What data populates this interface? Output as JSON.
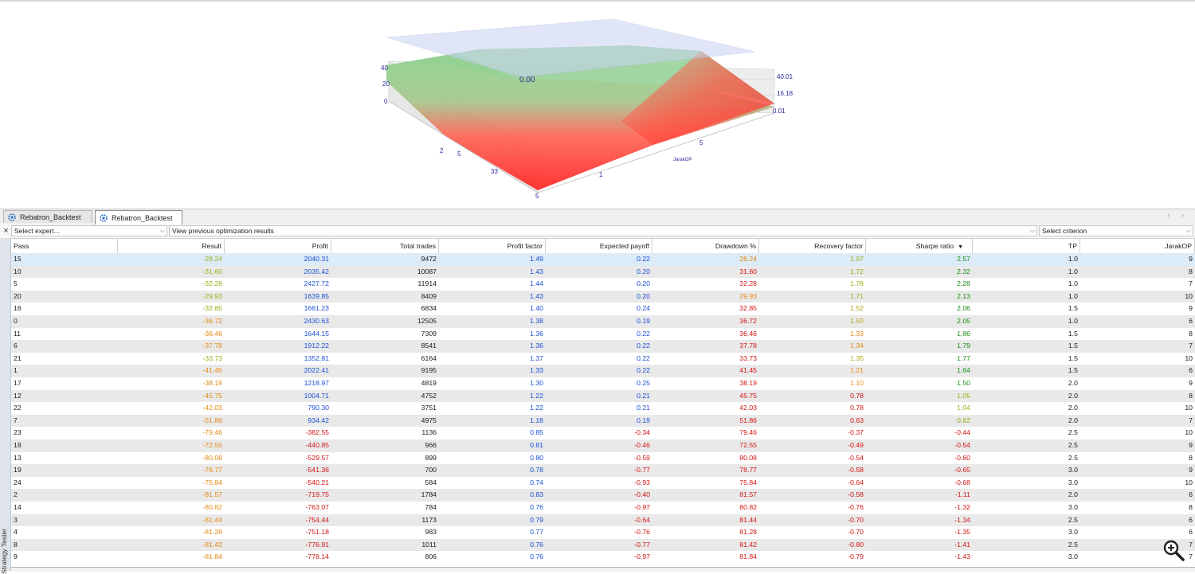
{
  "chart3d": {
    "labels": {
      "center": "0.00",
      "left_ticks": [
        "40",
        "20",
        "0"
      ],
      "right_ticks": [
        "40.01",
        "16.18",
        "0.01"
      ],
      "front_ticks": [
        "2",
        "5",
        "33",
        "5",
        "1",
        "5"
      ],
      "axis_name": "JarakOP"
    },
    "colors": {
      "high": "#8fd68f",
      "low": "#ff3030",
      "plane": "#c8d2f2"
    }
  },
  "tabs": [
    {
      "label": "Rebatron_Backtest",
      "icon": "gear-icon",
      "active": false
    },
    {
      "label": "Rebatron_Backtest",
      "icon": "gear-icon",
      "active": true
    }
  ],
  "toolbar": {
    "close": "×",
    "expert_placeholder": "Select expert...",
    "results_mode": "View previous optimization results",
    "criterion_placeholder": "Select criterion"
  },
  "side_panel_label": "Strategy Tester",
  "table": {
    "headers": [
      "Pass",
      "Result",
      "Profit",
      "Total trades",
      "Profit factor",
      "Expected payoff",
      "Drawdown %",
      "Recovery factor",
      "Sharpe ratio",
      "TP",
      "JarakOP"
    ],
    "sort_indicator": "▼",
    "rows": [
      [
        "15",
        "-28.24",
        "2040.31",
        "9472",
        "1.49",
        "0.22",
        "28.24",
        "1.97",
        "2.57",
        "1.0",
        "9"
      ],
      [
        "10",
        "-31.60",
        "2035.42",
        "10087",
        "1.43",
        "0.20",
        "31.60",
        "1.72",
        "2.32",
        "1.0",
        "8"
      ],
      [
        "5",
        "-32.28",
        "2427.72",
        "11914",
        "1.44",
        "0.20",
        "32.28",
        "1.78",
        "2.28",
        "1.0",
        "7"
      ],
      [
        "20",
        "-29.93",
        "1639.85",
        "8409",
        "1.43",
        "0.20",
        "29.93",
        "1.71",
        "2.13",
        "1.0",
        "10"
      ],
      [
        "16",
        "-32.85",
        "1661.23",
        "6834",
        "1.40",
        "0.24",
        "32.85",
        "1.52",
        "2.06",
        "1.5",
        "9"
      ],
      [
        "0",
        "-36.72",
        "2430.63",
        "12505",
        "1.38",
        "0.19",
        "36.72",
        "1.50",
        "2.05",
        "1.0",
        "6"
      ],
      [
        "11",
        "-36.46",
        "1644.15",
        "7309",
        "1.36",
        "0.22",
        "36.46",
        "1.33",
        "1.86",
        "1.5",
        "8"
      ],
      [
        "6",
        "-37.78",
        "1912.22",
        "8541",
        "1.36",
        "0.22",
        "37.78",
        "1.34",
        "1.79",
        "1.5",
        "7"
      ],
      [
        "21",
        "-33.73",
        "1352.81",
        "6164",
        "1.37",
        "0.22",
        "33.73",
        "1.35",
        "1.77",
        "1.5",
        "10"
      ],
      [
        "1",
        "-41.45",
        "2022.41",
        "9195",
        "1.33",
        "0.22",
        "41.45",
        "1.21",
        "1.64",
        "1.5",
        "6"
      ],
      [
        "17",
        "-38.19",
        "1218.97",
        "4819",
        "1.30",
        "0.25",
        "38.19",
        "1.10",
        "1.50",
        "2.0",
        "9"
      ],
      [
        "12",
        "-45.75",
        "1004.71",
        "4752",
        "1.22",
        "0.21",
        "45.75",
        "0.78",
        "1.05",
        "2.0",
        "8"
      ],
      [
        "22",
        "-42.03",
        "790.30",
        "3751",
        "1.22",
        "0.21",
        "42.03",
        "0.78",
        "1.04",
        "2.0",
        "10"
      ],
      [
        "7",
        "-51.86",
        "934.42",
        "4975",
        "1.18",
        "0.19",
        "51.86",
        "0.63",
        "0.82",
        "2.0",
        "7"
      ],
      [
        "23",
        "-79.46",
        "-382.55",
        "1136",
        "0.85",
        "-0.34",
        "79.46",
        "-0.37",
        "-0.44",
        "2.5",
        "10"
      ],
      [
        "18",
        "-72.55",
        "-440.85",
        "966",
        "0.81",
        "-0.46",
        "72.55",
        "-0.49",
        "-0.54",
        "2.5",
        "9"
      ],
      [
        "13",
        "-80.08",
        "-529.57",
        "899",
        "0.80",
        "-0.59",
        "80.08",
        "-0.54",
        "-0.60",
        "2.5",
        "8"
      ],
      [
        "19",
        "-78.77",
        "-541.36",
        "700",
        "0.78",
        "-0.77",
        "78.77",
        "-0.58",
        "-0.65",
        "3.0",
        "9"
      ],
      [
        "24",
        "-75.84",
        "-540.21",
        "584",
        "0.74",
        "-0.93",
        "75.84",
        "-0.64",
        "-0.68",
        "3.0",
        "10"
      ],
      [
        "2",
        "-81.57",
        "-719.75",
        "1784",
        "0.83",
        "-0.40",
        "81.57",
        "-0.58",
        "-1.11",
        "2.0",
        "6"
      ],
      [
        "14",
        "-80.82",
        "-763.07",
        "784",
        "0.76",
        "-0.97",
        "80.82",
        "-0.76",
        "-1.32",
        "3.0",
        "8"
      ],
      [
        "3",
        "-81.44",
        "-754.44",
        "1173",
        "0.79",
        "-0.64",
        "81.44",
        "-0.70",
        "-1.34",
        "2.5",
        "6"
      ],
      [
        "4",
        "-81.28",
        "-751.18",
        "983",
        "0.77",
        "-0.76",
        "81.28",
        "-0.70",
        "-1.35",
        "3.0",
        "6"
      ],
      [
        "8",
        "-81.42",
        "-776.91",
        "1011",
        "0.76",
        "-0.77",
        "81.42",
        "-0.80",
        "-1.41",
        "2.5",
        "7"
      ],
      [
        "9",
        "-81.84",
        "-778.14",
        "806",
        "0.76",
        "-0.97",
        "81.84",
        "-0.79",
        "-1.43",
        "3.0",
        "7"
      ]
    ]
  },
  "colors": {
    "blue": "#1c4fd6",
    "red": "#d21414",
    "green": "#1a8c1a",
    "yellowgreen": "#8fb51a",
    "orange": "#e38a14",
    "olive": "#b3a418",
    "dark": "#1a1a1a",
    "selected_row": "#dcebf8",
    "alt_row": "#e9e9e9"
  }
}
